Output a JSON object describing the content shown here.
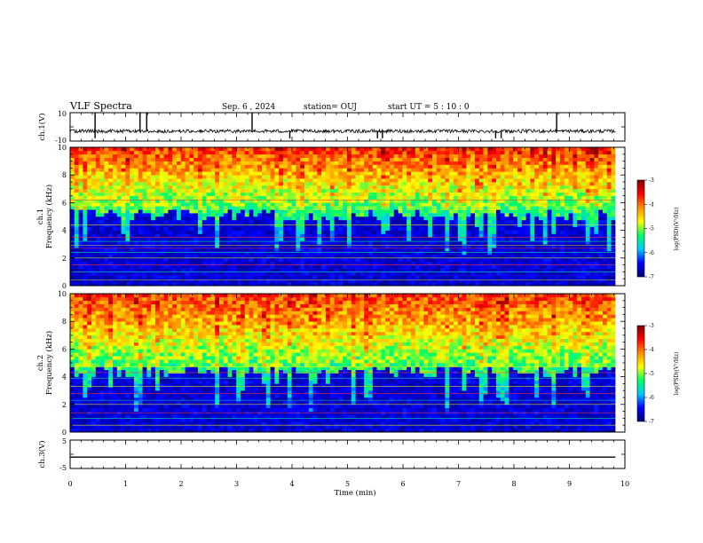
{
  "header": {
    "title": "VLF Spectra",
    "date": "Sep. 6  , 2024",
    "station": "station= OUJ",
    "start": "start  UT  =   5  : 10 : 0"
  },
  "chart_data": [
    {
      "type": "line",
      "name": "ch1-waveform",
      "ylabel": "ch.1(V)",
      "ylim": [
        -10,
        10
      ],
      "yticks": [
        "10",
        "-10"
      ],
      "xlim": [
        0,
        10
      ],
      "xdata_end": 9.83,
      "baseline": -3,
      "noise_amplitude": 1.2,
      "spikes_up": [
        0.45,
        1.26,
        1.38,
        3.28,
        8.77
      ],
      "spikes_down": [
        0.45,
        3.96,
        5.54,
        5.63,
        7.67,
        7.77
      ]
    },
    {
      "type": "heatmap",
      "name": "ch1-spectrogram",
      "ylabel": "ch.1\nFrequency (kHz)",
      "ylim": [
        0,
        10
      ],
      "yticks": [
        "0",
        "2",
        "4",
        "6",
        "8",
        "10"
      ],
      "xlim": [
        0,
        10
      ],
      "xdata_end": 9.83,
      "zlim": [
        -7,
        -3
      ],
      "zlabel": "log(PSD)(V²/Hz)",
      "background_band_khz": [
        0,
        5.5
      ],
      "noise_band_khz": [
        5.5,
        10
      ],
      "harmonic_lines_khz": [
        0.4,
        1.0,
        1.5,
        2.0,
        2.4,
        2.7,
        2.9,
        3.2,
        3.5,
        4.4,
        5.6,
        6.2
      ],
      "colorbar_ticks": [
        "-3",
        "-4",
        "-5",
        "-6",
        "-7"
      ]
    },
    {
      "type": "heatmap",
      "name": "ch2-spectrogram",
      "ylabel": "ch.2\nFrequency (kHz)",
      "ylim": [
        0,
        10
      ],
      "yticks": [
        "0",
        "2",
        "4",
        "6",
        "8",
        "10"
      ],
      "xlim": [
        0,
        10
      ],
      "xdata_end": 9.83,
      "zlim": [
        -7,
        -3
      ],
      "zlabel": "log(PSD)(V²/Hz)",
      "background_band_khz": [
        0,
        4.8
      ],
      "noise_band_khz": [
        4.8,
        10
      ],
      "harmonic_lines_khz": [
        0.5,
        1.0,
        1.4,
        2.0,
        2.3,
        2.8,
        3.3,
        3.9,
        4.3,
        4.7
      ],
      "colorbar_ticks": [
        "-3",
        "-4",
        "-5",
        "-6",
        "-7"
      ]
    },
    {
      "type": "line",
      "name": "ch3-waveform",
      "ylabel": "ch.3(V)",
      "ylim": [
        -5,
        5
      ],
      "yticks": [
        "5",
        "-5"
      ],
      "xlim": [
        0,
        10
      ],
      "xdata_end": 9.83,
      "constant_value": -1
    }
  ],
  "xaxis": {
    "label": "Time  (min)",
    "ticks": [
      "0",
      "1",
      "2",
      "3",
      "4",
      "5",
      "6",
      "7",
      "8",
      "9",
      "10"
    ]
  },
  "colormap": [
    "#00007a",
    "#0000ff",
    "#00c8ff",
    "#00ff64",
    "#ffff00",
    "#ff8c00",
    "#ff0000",
    "#7f0000"
  ]
}
